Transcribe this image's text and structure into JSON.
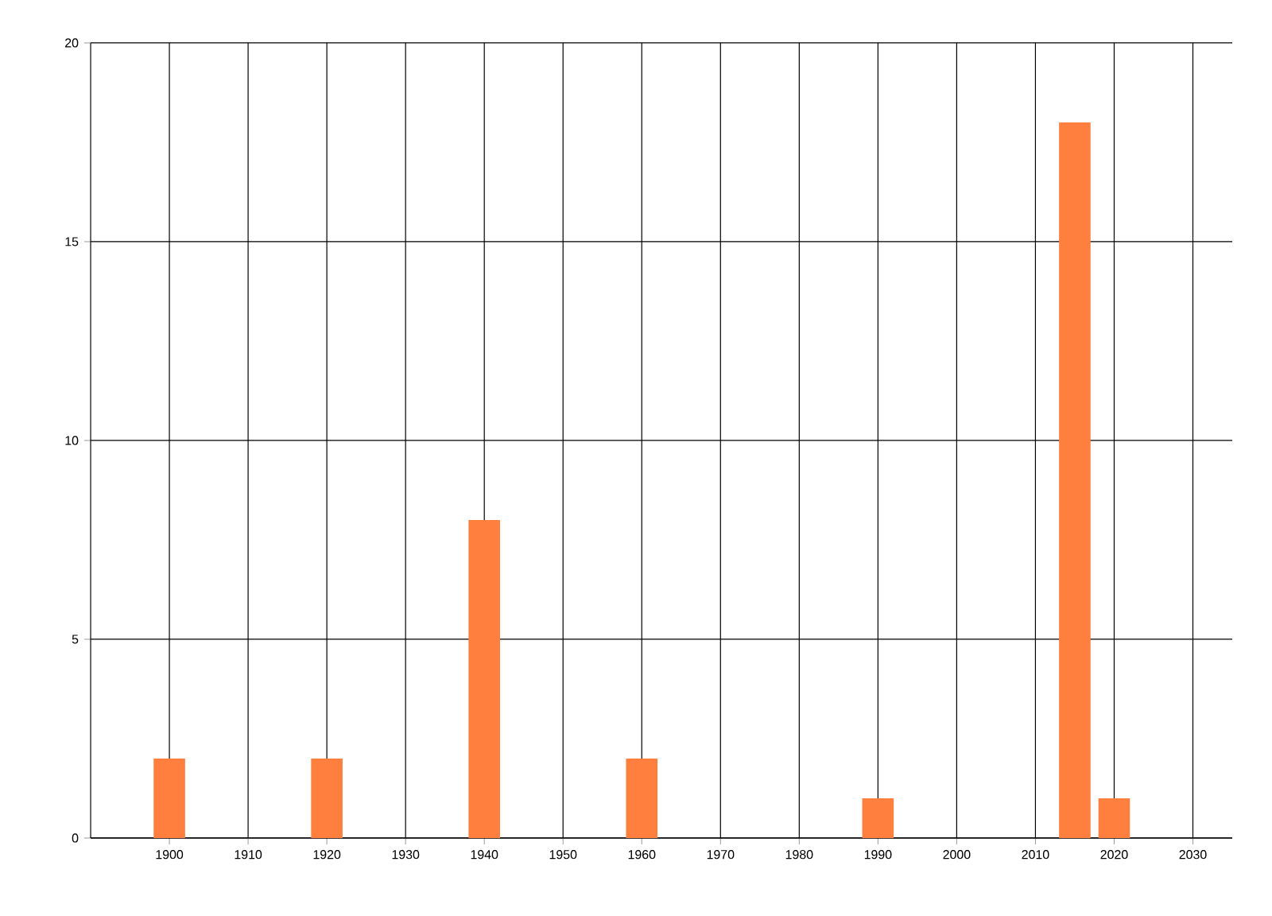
{
  "chart_data": {
    "type": "bar",
    "x": [
      1900,
      1920,
      1940,
      1960,
      1990,
      2015,
      2020
    ],
    "values": [
      2,
      2,
      8,
      2,
      1,
      18,
      1
    ],
    "color": "#ff7f3f",
    "xlim": [
      1890,
      2035
    ],
    "xticks": [
      1900,
      1910,
      1920,
      1930,
      1940,
      1950,
      1960,
      1970,
      1980,
      1990,
      2000,
      2010,
      2020,
      2030
    ],
    "ylim": [
      0,
      20
    ],
    "yticks": [
      0,
      5,
      10,
      15,
      20
    ],
    "grid": true
  }
}
